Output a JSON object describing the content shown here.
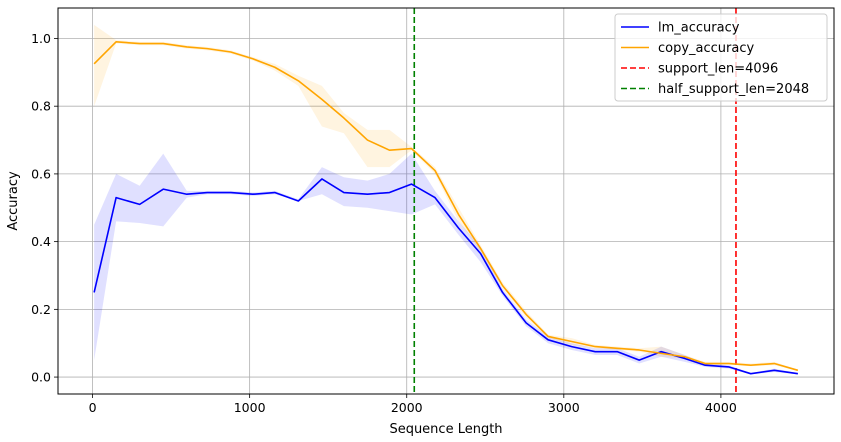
{
  "chart_data": {
    "type": "line",
    "title": "",
    "xlabel": "Sequence Length",
    "ylabel": "Accuracy",
    "xlim": [
      -220,
      4720
    ],
    "ylim": [
      -0.05,
      1.09
    ],
    "xticks": [
      0,
      1000,
      2000,
      3000,
      4000
    ],
    "xtick_labels": [
      "0",
      "1000",
      "2000",
      "3000",
      "4000"
    ],
    "yticks": [
      0.0,
      0.2,
      0.4,
      0.6,
      0.8,
      1.0
    ],
    "ytick_labels": [
      "0.0",
      "0.2",
      "0.4",
      "0.6",
      "0.8",
      "1.0"
    ],
    "grid": true,
    "legend_position": "top-right",
    "x": [
      10,
      150,
      300,
      450,
      600,
      730,
      880,
      1020,
      1160,
      1310,
      1460,
      1600,
      1750,
      1890,
      2030,
      2180,
      2330,
      2470,
      2610,
      2760,
      2900,
      3050,
      3200,
      3340,
      3480,
      3620,
      3770,
      3900,
      4050,
      4190,
      4340,
      4490
    ],
    "series": [
      {
        "name": "lm_accuracy",
        "color": "#0000ff",
        "band_color": "#0000ff",
        "values": [
          0.25,
          0.53,
          0.51,
          0.555,
          0.54,
          0.545,
          0.545,
          0.54,
          0.545,
          0.52,
          0.585,
          0.545,
          0.54,
          0.545,
          0.57,
          0.53,
          0.44,
          0.365,
          0.25,
          0.16,
          0.11,
          0.09,
          0.075,
          0.075,
          0.05,
          0.075,
          0.055,
          0.035,
          0.03,
          0.01,
          0.02,
          0.01
        ],
        "lower": [
          0.05,
          0.46,
          0.455,
          0.445,
          0.53,
          0.54,
          0.54,
          0.535,
          0.54,
          0.52,
          0.54,
          0.505,
          0.5,
          0.49,
          0.48,
          0.51,
          0.42,
          0.34,
          0.24,
          0.15,
          0.1,
          0.08,
          0.065,
          0.065,
          0.04,
          0.06,
          0.045,
          0.03,
          0.025,
          0.008,
          0.015,
          0.008
        ],
        "upper": [
          0.45,
          0.6,
          0.565,
          0.66,
          0.55,
          0.55,
          0.55,
          0.545,
          0.55,
          0.525,
          0.62,
          0.59,
          0.58,
          0.6,
          0.66,
          0.55,
          0.46,
          0.385,
          0.26,
          0.17,
          0.12,
          0.1,
          0.085,
          0.085,
          0.06,
          0.09,
          0.065,
          0.04,
          0.035,
          0.012,
          0.025,
          0.012
        ]
      },
      {
        "name": "copy_accuracy",
        "color": "#ffa500",
        "band_color": "#ffa500",
        "values": [
          0.925,
          0.99,
          0.985,
          0.985,
          0.975,
          0.97,
          0.96,
          0.94,
          0.915,
          0.875,
          0.82,
          0.765,
          0.7,
          0.67,
          0.675,
          0.61,
          0.48,
          0.38,
          0.27,
          0.185,
          0.12,
          0.105,
          0.09,
          0.085,
          0.08,
          0.07,
          0.06,
          0.04,
          0.04,
          0.035,
          0.04,
          0.02
        ],
        "lower": [
          0.8,
          0.985,
          0.98,
          0.98,
          0.97,
          0.965,
          0.955,
          0.935,
          0.905,
          0.86,
          0.74,
          0.72,
          0.62,
          0.62,
          0.67,
          0.6,
          0.46,
          0.37,
          0.26,
          0.175,
          0.115,
          0.095,
          0.085,
          0.08,
          0.075,
          0.06,
          0.055,
          0.038,
          0.038,
          0.032,
          0.035,
          0.018
        ],
        "upper": [
          1.04,
          0.995,
          0.99,
          0.99,
          0.98,
          0.975,
          0.965,
          0.945,
          0.925,
          0.89,
          0.86,
          0.78,
          0.73,
          0.73,
          0.68,
          0.62,
          0.5,
          0.39,
          0.28,
          0.195,
          0.125,
          0.115,
          0.095,
          0.09,
          0.085,
          0.09,
          0.065,
          0.045,
          0.045,
          0.04,
          0.045,
          0.022
        ]
      }
    ],
    "vlines": [
      {
        "name": "support_len=4096",
        "x": 4096,
        "color": "#ff0000"
      },
      {
        "name": "half_support_len=2048",
        "x": 2048,
        "color": "#008000"
      }
    ],
    "legend": [
      {
        "label": "lm_accuracy",
        "color": "#0000ff",
        "style": "solid"
      },
      {
        "label": "copy_accuracy",
        "color": "#ffa500",
        "style": "solid"
      },
      {
        "label": "support_len=4096",
        "color": "#ff0000",
        "style": "dashed"
      },
      {
        "label": "half_support_len=2048",
        "color": "#008000",
        "style": "dashed"
      }
    ]
  }
}
